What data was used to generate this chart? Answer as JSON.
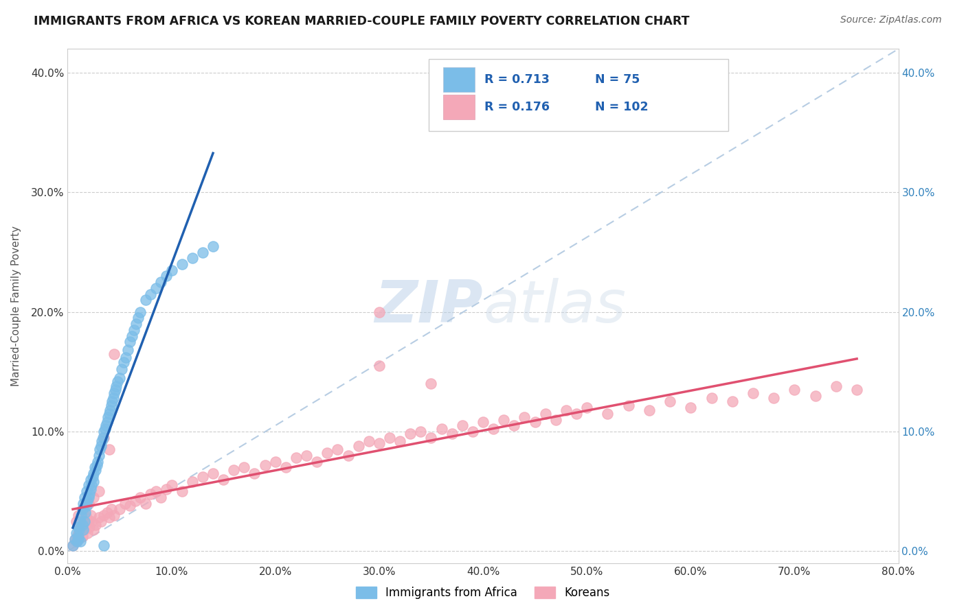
{
  "title": "IMMIGRANTS FROM AFRICA VS KOREAN MARRIED-COUPLE FAMILY POVERTY CORRELATION CHART",
  "source": "Source: ZipAtlas.com",
  "ylabel": "Married-Couple Family Poverty",
  "legend_label1": "Immigrants from Africa",
  "legend_label2": "Koreans",
  "R1": 0.713,
  "N1": 75,
  "R2": 0.176,
  "N2": 102,
  "color1": "#7bbde8",
  "color2": "#f4a8b8",
  "regline1_color": "#2060b0",
  "regline2_color": "#e05070",
  "watermark_zip": "ZIP",
  "watermark_atlas": "atlas",
  "xlim": [
    0.0,
    0.8
  ],
  "ylim": [
    -0.01,
    0.42
  ],
  "xticks": [
    0.0,
    0.1,
    0.2,
    0.3,
    0.4,
    0.5,
    0.6,
    0.7,
    0.8
  ],
  "yticks": [
    0.0,
    0.1,
    0.2,
    0.3,
    0.4
  ],
  "background_color": "#ffffff",
  "africa_x": [
    0.005,
    0.007,
    0.008,
    0.009,
    0.01,
    0.01,
    0.011,
    0.012,
    0.012,
    0.013,
    0.014,
    0.014,
    0.015,
    0.015,
    0.016,
    0.016,
    0.017,
    0.018,
    0.018,
    0.019,
    0.02,
    0.02,
    0.021,
    0.022,
    0.022,
    0.023,
    0.024,
    0.025,
    0.025,
    0.026,
    0.027,
    0.028,
    0.029,
    0.03,
    0.031,
    0.032,
    0.033,
    0.034,
    0.035,
    0.036,
    0.037,
    0.038,
    0.039,
    0.04,
    0.041,
    0.042,
    0.043,
    0.044,
    0.045,
    0.046,
    0.047,
    0.048,
    0.05,
    0.052,
    0.054,
    0.056,
    0.058,
    0.06,
    0.062,
    0.064,
    0.066,
    0.068,
    0.07,
    0.075,
    0.08,
    0.085,
    0.09,
    0.095,
    0.1,
    0.11,
    0.12,
    0.13,
    0.14,
    0.01,
    0.035
  ],
  "africa_y": [
    0.005,
    0.01,
    0.015,
    0.008,
    0.012,
    0.02,
    0.018,
    0.025,
    0.008,
    0.03,
    0.022,
    0.035,
    0.018,
    0.04,
    0.025,
    0.045,
    0.032,
    0.038,
    0.05,
    0.042,
    0.045,
    0.055,
    0.048,
    0.052,
    0.06,
    0.055,
    0.062,
    0.058,
    0.065,
    0.07,
    0.068,
    0.072,
    0.075,
    0.08,
    0.085,
    0.088,
    0.092,
    0.095,
    0.1,
    0.102,
    0.105,
    0.108,
    0.112,
    0.115,
    0.118,
    0.122,
    0.125,
    0.128,
    0.132,
    0.135,
    0.138,
    0.142,
    0.145,
    0.152,
    0.158,
    0.162,
    0.168,
    0.175,
    0.18,
    0.185,
    0.19,
    0.195,
    0.2,
    0.21,
    0.215,
    0.22,
    0.225,
    0.23,
    0.235,
    0.24,
    0.245,
    0.25,
    0.255,
    0.01,
    0.005
  ],
  "korea_x": [
    0.005,
    0.007,
    0.008,
    0.009,
    0.01,
    0.012,
    0.013,
    0.014,
    0.015,
    0.016,
    0.017,
    0.018,
    0.019,
    0.02,
    0.021,
    0.022,
    0.023,
    0.025,
    0.027,
    0.03,
    0.032,
    0.035,
    0.038,
    0.04,
    0.042,
    0.045,
    0.05,
    0.055,
    0.06,
    0.065,
    0.07,
    0.075,
    0.08,
    0.085,
    0.09,
    0.095,
    0.1,
    0.11,
    0.12,
    0.13,
    0.14,
    0.15,
    0.16,
    0.17,
    0.18,
    0.19,
    0.2,
    0.21,
    0.22,
    0.23,
    0.24,
    0.25,
    0.26,
    0.27,
    0.28,
    0.29,
    0.3,
    0.31,
    0.32,
    0.33,
    0.34,
    0.35,
    0.36,
    0.37,
    0.38,
    0.39,
    0.4,
    0.41,
    0.42,
    0.43,
    0.44,
    0.45,
    0.46,
    0.47,
    0.48,
    0.49,
    0.5,
    0.52,
    0.54,
    0.56,
    0.58,
    0.6,
    0.62,
    0.64,
    0.66,
    0.68,
    0.7,
    0.72,
    0.74,
    0.76,
    0.035,
    0.04,
    0.045,
    0.3,
    0.35,
    0.3,
    0.008,
    0.01,
    0.015,
    0.02,
    0.025,
    0.03
  ],
  "korea_y": [
    0.005,
    0.01,
    0.008,
    0.012,
    0.015,
    0.018,
    0.02,
    0.012,
    0.025,
    0.018,
    0.022,
    0.028,
    0.015,
    0.025,
    0.02,
    0.03,
    0.025,
    0.018,
    0.022,
    0.028,
    0.025,
    0.03,
    0.032,
    0.028,
    0.035,
    0.03,
    0.035,
    0.04,
    0.038,
    0.042,
    0.045,
    0.04,
    0.048,
    0.05,
    0.045,
    0.052,
    0.055,
    0.05,
    0.058,
    0.062,
    0.065,
    0.06,
    0.068,
    0.07,
    0.065,
    0.072,
    0.075,
    0.07,
    0.078,
    0.08,
    0.075,
    0.082,
    0.085,
    0.08,
    0.088,
    0.092,
    0.09,
    0.095,
    0.092,
    0.098,
    0.1,
    0.095,
    0.102,
    0.098,
    0.105,
    0.1,
    0.108,
    0.102,
    0.11,
    0.105,
    0.112,
    0.108,
    0.115,
    0.11,
    0.118,
    0.115,
    0.12,
    0.115,
    0.122,
    0.118,
    0.125,
    0.12,
    0.128,
    0.125,
    0.132,
    0.128,
    0.135,
    0.13,
    0.138,
    0.135,
    0.095,
    0.085,
    0.165,
    0.155,
    0.14,
    0.2,
    0.025,
    0.03,
    0.035,
    0.04,
    0.045,
    0.05
  ]
}
